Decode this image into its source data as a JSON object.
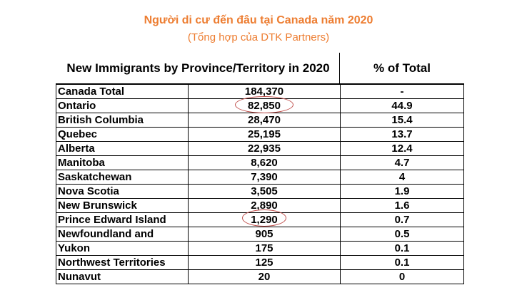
{
  "title": "Người di cư đến đâu tại Canada năm 2020",
  "subtitle": "(Tổng hợp của DTK Partners)",
  "table": {
    "headers": [
      "New Immigrants by Province/Territory in 2020",
      "% of Total"
    ],
    "rows": [
      {
        "name": "Canada Total",
        "value": "184,370",
        "pct": "-"
      },
      {
        "name": "Ontario",
        "value": "82,850",
        "pct": "44.9"
      },
      {
        "name": "British Columbia",
        "value": "28,470",
        "pct": "15.4"
      },
      {
        "name": "Quebec",
        "value": "25,195",
        "pct": "13.7"
      },
      {
        "name": "Alberta",
        "value": "22,935",
        "pct": "12.4"
      },
      {
        "name": "Manitoba",
        "value": "8,620",
        "pct": "4.7"
      },
      {
        "name": "Saskatchewan",
        "value": "7,390",
        "pct": "4"
      },
      {
        "name": "Nova Scotia",
        "value": "3,505",
        "pct": "1.9"
      },
      {
        "name": "New Brunswick",
        "value": "2,890",
        "pct": "1.6"
      },
      {
        "name": "Prince Edward Island",
        "value": "1,290",
        "pct": "0.7"
      },
      {
        "name": "Newfoundland and",
        "value": "905",
        "pct": "0.5"
      },
      {
        "name": "Yukon",
        "value": "175",
        "pct": "0.1"
      },
      {
        "name": "Northwest Territories",
        "value": "125",
        "pct": "0.1"
      },
      {
        "name": "Nunavut",
        "value": "20",
        "pct": "0"
      }
    ]
  },
  "colors": {
    "title": "#ED7D31",
    "highlight": "#C0504D"
  }
}
